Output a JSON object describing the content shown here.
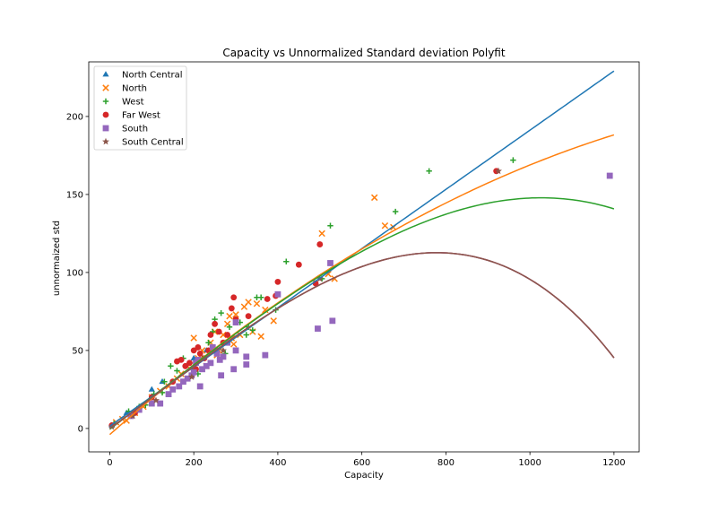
{
  "chart_data": {
    "type": "scatter",
    "title": "Capacity vs Unnormalized Standard deviation Polyfit",
    "xlabel": "Capacity",
    "ylabel": "unnormaized std",
    "xlim": [
      -50,
      1260
    ],
    "ylim": [
      -15,
      235
    ],
    "xticks": [
      0,
      200,
      400,
      600,
      800,
      1000,
      1200
    ],
    "yticks": [
      0,
      50,
      100,
      150,
      200
    ],
    "grid": false,
    "legend_position": "top-left",
    "series": [
      {
        "name": "North Central",
        "marker": "triangle",
        "color": "#1f77b4",
        "points": [
          [
            5,
            2
          ],
          [
            40,
            10
          ],
          [
            100,
            25
          ],
          [
            125,
            30
          ],
          [
            200,
            45
          ],
          [
            230,
            50
          ]
        ]
      },
      {
        "name": "North",
        "marker": "x",
        "color": "#ff7f0e",
        "points": [
          [
            15,
            4
          ],
          [
            30,
            6
          ],
          [
            40,
            5
          ],
          [
            60,
            10
          ],
          [
            80,
            14
          ],
          [
            100,
            20
          ],
          [
            120,
            24
          ],
          [
            140,
            27
          ],
          [
            160,
            32
          ],
          [
            170,
            35
          ],
          [
            185,
            40
          ],
          [
            200,
            58
          ],
          [
            210,
            45
          ],
          [
            220,
            50
          ],
          [
            230,
            40
          ],
          [
            240,
            55
          ],
          [
            250,
            62
          ],
          [
            255,
            47
          ],
          [
            260,
            50
          ],
          [
            270,
            60
          ],
          [
            280,
            67
          ],
          [
            285,
            72
          ],
          [
            290,
            58
          ],
          [
            295,
            54
          ],
          [
            300,
            73
          ],
          [
            310,
            60
          ],
          [
            320,
            78
          ],
          [
            330,
            81
          ],
          [
            340,
            62
          ],
          [
            350,
            80
          ],
          [
            360,
            59
          ],
          [
            370,
            76
          ],
          [
            390,
            69
          ],
          [
            505,
            125
          ],
          [
            520,
            99
          ],
          [
            535,
            96
          ],
          [
            630,
            148
          ],
          [
            655,
            130
          ],
          [
            675,
            129
          ]
        ]
      },
      {
        "name": "West",
        "marker": "plus",
        "color": "#2ca02c",
        "points": [
          [
            10,
            3
          ],
          [
            45,
            11
          ],
          [
            70,
            14
          ],
          [
            85,
            15
          ],
          [
            105,
            22
          ],
          [
            125,
            23
          ],
          [
            130,
            30
          ],
          [
            145,
            40
          ],
          [
            160,
            37
          ],
          [
            175,
            45
          ],
          [
            190,
            42
          ],
          [
            200,
            38
          ],
          [
            210,
            35
          ],
          [
            220,
            45
          ],
          [
            235,
            55
          ],
          [
            245,
            62
          ],
          [
            250,
            70
          ],
          [
            265,
            74
          ],
          [
            275,
            48
          ],
          [
            285,
            65
          ],
          [
            300,
            70
          ],
          [
            310,
            68
          ],
          [
            325,
            60
          ],
          [
            330,
            65
          ],
          [
            340,
            63
          ],
          [
            350,
            84
          ],
          [
            360,
            84
          ],
          [
            395,
            76
          ],
          [
            420,
            107
          ],
          [
            505,
            96
          ],
          [
            525,
            130
          ],
          [
            680,
            139
          ],
          [
            760,
            165
          ],
          [
            960,
            172
          ]
        ]
      },
      {
        "name": "Far West",
        "marker": "circle",
        "color": "#d62728",
        "points": [
          [
            5,
            2
          ],
          [
            60,
            10
          ],
          [
            100,
            20
          ],
          [
            150,
            30
          ],
          [
            160,
            43
          ],
          [
            170,
            44
          ],
          [
            180,
            40
          ],
          [
            190,
            42
          ],
          [
            200,
            50
          ],
          [
            205,
            38
          ],
          [
            210,
            52
          ],
          [
            215,
            48
          ],
          [
            225,
            45
          ],
          [
            235,
            50
          ],
          [
            240,
            60
          ],
          [
            250,
            67
          ],
          [
            260,
            62
          ],
          [
            270,
            55
          ],
          [
            280,
            60
          ],
          [
            290,
            77
          ],
          [
            295,
            84
          ],
          [
            300,
            70
          ],
          [
            330,
            72
          ],
          [
            375,
            83
          ],
          [
            395,
            85
          ],
          [
            400,
            94
          ],
          [
            450,
            105
          ],
          [
            490,
            93
          ],
          [
            500,
            118
          ],
          [
            920,
            165
          ]
        ]
      },
      {
        "name": "South",
        "marker": "square",
        "color": "#9467bd",
        "points": [
          [
            50,
            8
          ],
          [
            70,
            12
          ],
          [
            100,
            16
          ],
          [
            120,
            16
          ],
          [
            140,
            22
          ],
          [
            150,
            25
          ],
          [
            165,
            27
          ],
          [
            175,
            30
          ],
          [
            185,
            32
          ],
          [
            195,
            34
          ],
          [
            200,
            36
          ],
          [
            205,
            42
          ],
          [
            210,
            44
          ],
          [
            215,
            27
          ],
          [
            220,
            38
          ],
          [
            230,
            40
          ],
          [
            240,
            42
          ],
          [
            245,
            52
          ],
          [
            250,
            50
          ],
          [
            255,
            48
          ],
          [
            262,
            44
          ],
          [
            265,
            34
          ],
          [
            270,
            46
          ],
          [
            280,
            55
          ],
          [
            295,
            38
          ],
          [
            300,
            50
          ],
          [
            300,
            68
          ],
          [
            325,
            41
          ],
          [
            325,
            46
          ],
          [
            370,
            47
          ],
          [
            400,
            86
          ],
          [
            495,
            64
          ],
          [
            525,
            106
          ],
          [
            530,
            69
          ],
          [
            1190,
            162
          ]
        ]
      },
      {
        "name": "South Central",
        "marker": "star",
        "color": "#8c564b",
        "points": [
          [
            5,
            1
          ],
          [
            55,
            8
          ],
          [
            110,
            18
          ],
          [
            195,
            33
          ],
          [
            270,
            50
          ],
          [
            500,
            96
          ],
          [
            925,
            165
          ]
        ]
      }
    ],
    "fit_lines": [
      {
        "color": "#1f77b4",
        "coeffs": [
          1.5,
          0.1897
        ]
      },
      {
        "color": "#ff7f0e",
        "coeffs": [
          -3.9,
          0.2364,
          -6.36e-05
        ]
      },
      {
        "color": "#2ca02c",
        "coeffs": [
          -0.5,
          0.2046,
          2.36e-05,
          -8e-08
        ]
      },
      {
        "color": "#d62728",
        "coeffs": [
          0.0,
          0.1929,
          6.27e-05,
          -1.6e-07
        ]
      },
      {
        "color": "#9467bd",
        "coeffs": [
          0.0,
          0.1929,
          6.27e-05,
          -1.6e-07
        ]
      },
      {
        "color": "#8c564b",
        "coeffs": [
          0.0,
          0.1929,
          6.27e-05,
          -1.6e-07
        ]
      }
    ]
  }
}
